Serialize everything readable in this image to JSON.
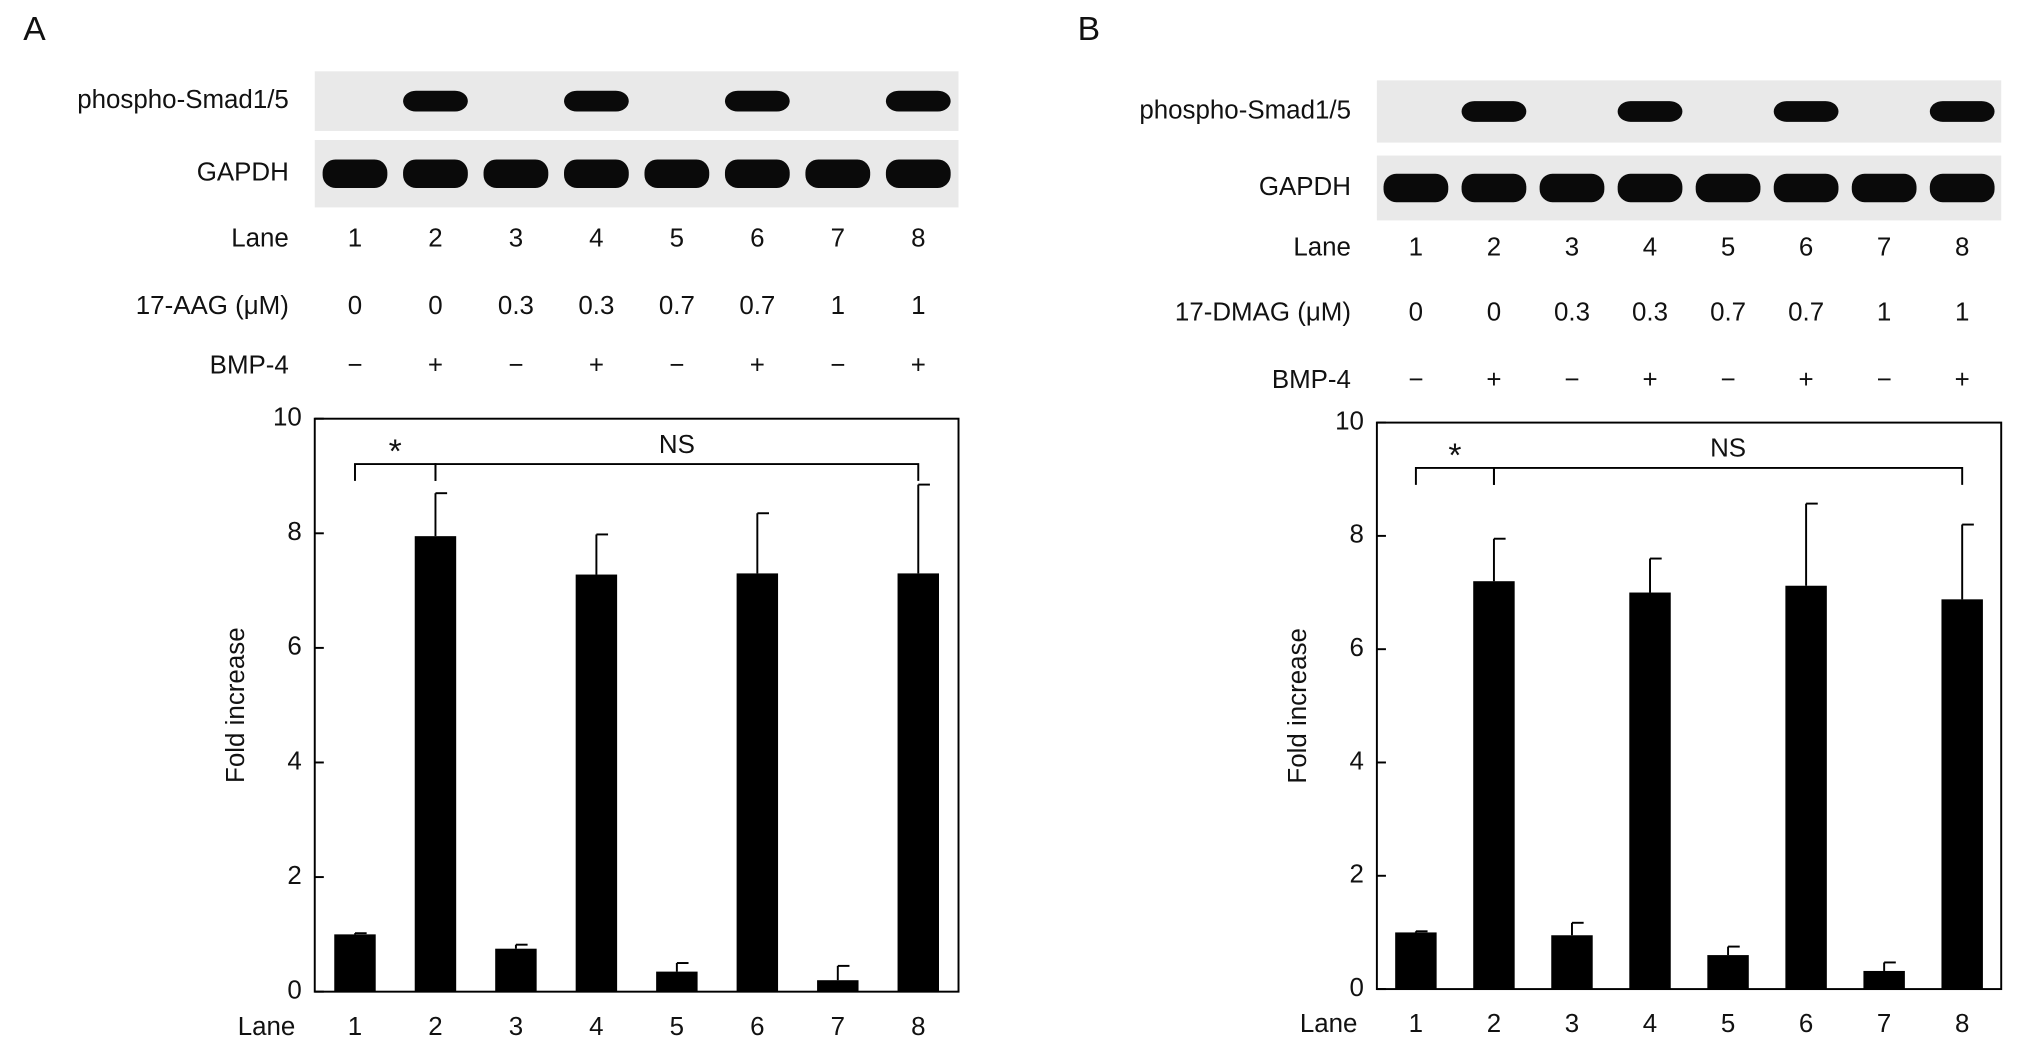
{
  "chart_data": [
    {
      "type": "bar",
      "panel": "A",
      "blots": [
        "phospho-Smad1/5",
        "GAPDH"
      ],
      "conditions": [
        {
          "label": "Lane",
          "values": [
            "1",
            "2",
            "3",
            "4",
            "5",
            "6",
            "7",
            "8"
          ]
        },
        {
          "label": "17-AAG (μM)",
          "values": [
            "0",
            "0",
            "0.3",
            "0.3",
            "0.7",
            "0.7",
            "1",
            "1"
          ]
        },
        {
          "label": "BMP-4",
          "values": [
            "−",
            "+",
            "−",
            "+",
            "−",
            "+",
            "−",
            "+"
          ]
        }
      ],
      "ylabel": "Fold increase",
      "xlabel": "Lane",
      "categories": [
        "1",
        "2",
        "3",
        "4",
        "5",
        "6",
        "7",
        "8"
      ],
      "series": [
        {
          "color": "#000000",
          "values": [
            1.0,
            7.95,
            0.75,
            7.28,
            0.35,
            7.3,
            0.2,
            7.3
          ],
          "errors": [
            0.02,
            0.75,
            0.07,
            0.7,
            0.15,
            1.05,
            0.25,
            1.55
          ]
        }
      ],
      "ylim": [
        0,
        10
      ],
      "yticks": [
        0,
        2,
        4,
        6,
        8,
        10
      ],
      "annotations": [
        "*",
        "NS"
      ]
    },
    {
      "type": "bar",
      "panel": "B",
      "blots": [
        "phospho-Smad1/5",
        "GAPDH"
      ],
      "conditions": [
        {
          "label": "Lane",
          "values": [
            "1",
            "2",
            "3",
            "4",
            "5",
            "6",
            "7",
            "8"
          ]
        },
        {
          "label": "17-DMAG (μM)",
          "values": [
            "0",
            "0",
            "0.3",
            "0.3",
            "0.7",
            "0.7",
            "1",
            "1"
          ]
        },
        {
          "label": "BMP-4",
          "values": [
            "−",
            "+",
            "−",
            "+",
            "−",
            "+",
            "−",
            "+"
          ]
        }
      ],
      "ylabel": "Fold increase",
      "xlabel": "Lane",
      "categories": [
        "1",
        "2",
        "3",
        "4",
        "5",
        "6",
        "7",
        "8"
      ],
      "series": [
        {
          "color": "#000000",
          "values": [
            1.0,
            7.2,
            0.95,
            7.0,
            0.6,
            7.12,
            0.32,
            6.88
          ],
          "errors": [
            0.02,
            0.75,
            0.22,
            0.6,
            0.15,
            1.45,
            0.15,
            1.32
          ]
        }
      ],
      "ylim": [
        0,
        10
      ],
      "yticks": [
        0,
        2,
        4,
        6,
        8,
        10
      ],
      "annotations": [
        "*",
        "NS"
      ]
    }
  ]
}
